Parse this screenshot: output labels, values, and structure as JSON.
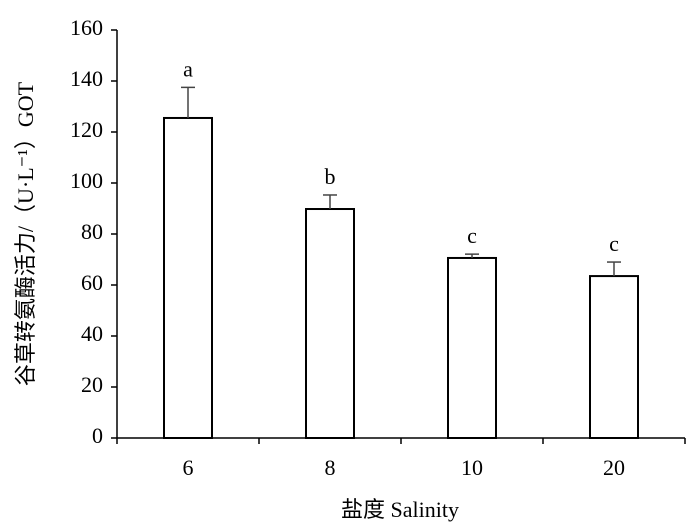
{
  "chart_data": {
    "type": "bar",
    "xlabel": "盐度 Salinity",
    "ylabel": "谷草转氨酶活力/（U·L⁻¹）GOT",
    "categories": [
      "6",
      "8",
      "10",
      "20"
    ],
    "values": [
      125.5,
      89.8,
      70.6,
      63.5
    ],
    "errors": [
      12,
      5.5,
      1.5,
      5.5
    ],
    "value_labels": [
      "a",
      "b",
      "c",
      "c"
    ],
    "color": "#ffffff",
    "edge_color": "#000000",
    "ylim": [
      0,
      160
    ],
    "yticks": [
      0,
      20,
      40,
      60,
      80,
      100,
      120,
      140,
      160
    ],
    "grid": false
  }
}
